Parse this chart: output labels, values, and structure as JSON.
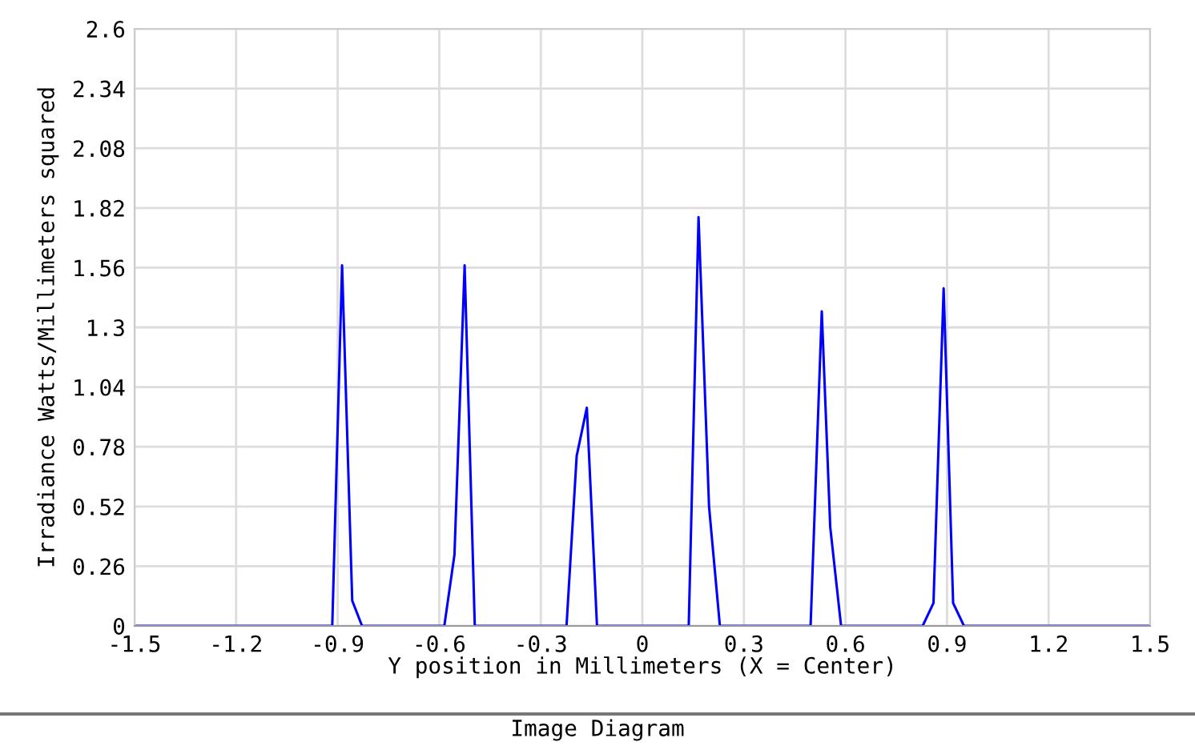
{
  "chart_data": {
    "type": "line",
    "title": "Image Diagram",
    "xlabel": "Y position in Millimeters (X = Center)",
    "ylabel": "Irradiance Watts/Millimeters squared",
    "series": [
      {
        "color": "#0000ff",
        "x": [
          -1.5,
          -0.916,
          -0.887,
          -0.857,
          -0.828,
          -0.585,
          -0.555,
          -0.525,
          -0.495,
          -0.224,
          -0.194,
          -0.164,
          -0.134,
          0.137,
          0.166,
          0.197,
          0.229,
          0.497,
          0.53,
          0.555,
          0.587,
          0.828,
          0.86,
          0.89,
          0.918,
          0.95,
          1.5
        ],
        "values": [
          0,
          0,
          1.57,
          0.11,
          0,
          0,
          0.31,
          1.57,
          0,
          0,
          0.74,
          0.95,
          0,
          0,
          1.78,
          0.52,
          0,
          0,
          1.37,
          0.43,
          0,
          0,
          0.1,
          1.47,
          0.1,
          0,
          0
        ]
      }
    ],
    "xlim": [
      -1.5,
      1.5
    ],
    "xticks": [
      -1.5,
      -1.2,
      -0.9,
      -0.6,
      -0.3,
      0,
      0.3,
      0.6,
      0.9,
      1.2,
      1.5
    ],
    "ylim": [
      0,
      2.6
    ],
    "yticks": [
      0,
      0.26,
      0.52,
      0.78,
      1.04,
      1.3,
      1.56,
      1.82,
      2.08,
      2.34,
      2.6
    ],
    "grid": true,
    "legend": false,
    "marker": "none",
    "line_style": "solid"
  }
}
